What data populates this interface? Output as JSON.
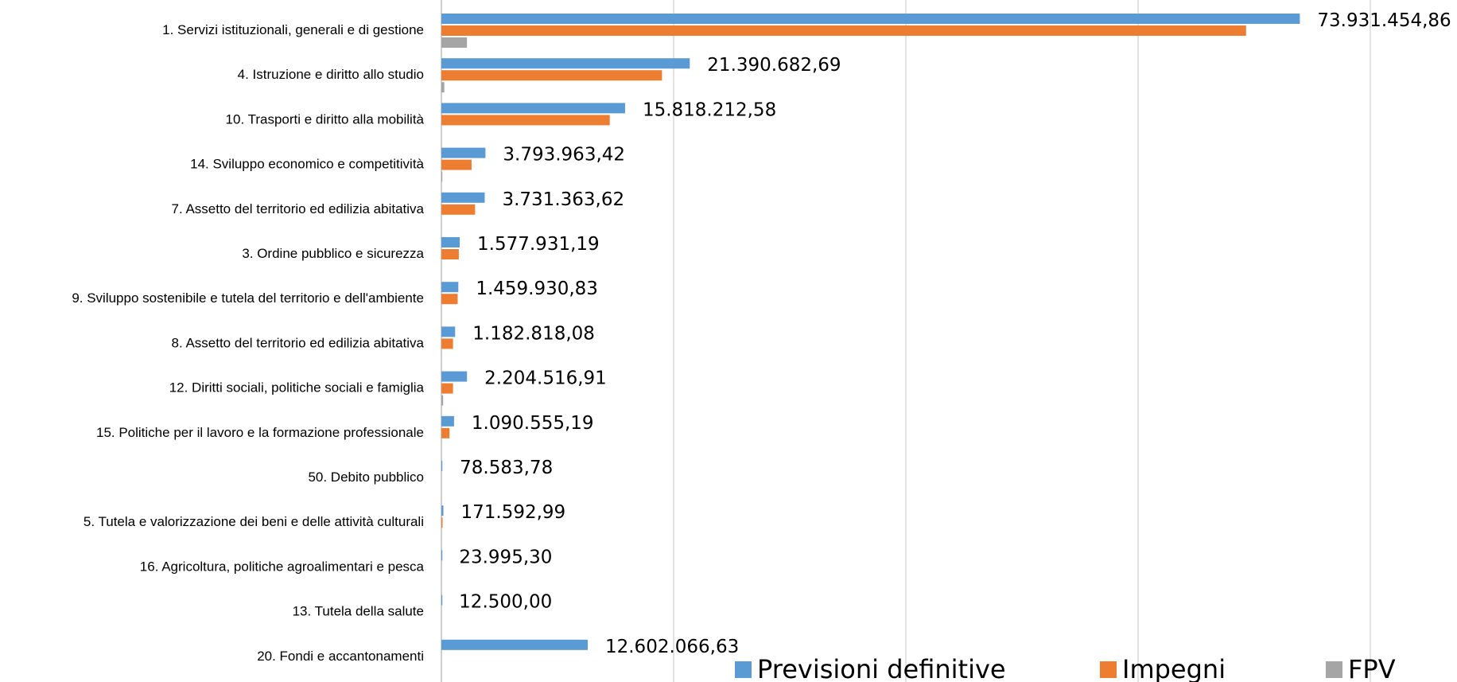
{
  "chart_data": {
    "type": "bar",
    "orientation": "horizontal",
    "categories": [
      "1. Servizi istituzionali, generali e di gestione",
      "4. Istruzione e diritto allo studio",
      "10. Trasporti e diritto alla mobilità",
      "14. Sviluppo economico e competitività",
      "7. Assetto del territorio ed edilizia abitativa",
      "3. Ordine pubblico e sicurezza",
      "9. Sviluppo sostenibile e tutela del territorio e dell'ambiente",
      "8. Assetto del territorio ed edilizia abitativa",
      "12. Diritti sociali, politiche sociali e famiglia",
      "15. Politiche per il lavoro e la formazione professionale",
      "50. Debito pubblico",
      "5. Tutela e valorizzazione dei beni e delle attività culturali",
      "16. Agricoltura, politiche agroalimentari e pesca",
      "13. Tutela della salute",
      "20. Fondi e accantonamenti"
    ],
    "series": [
      {
        "name": "Previsioni definitive",
        "color": "#5b9bd5",
        "values": [
          73931454.86,
          21390682.69,
          15818212.58,
          3793963.42,
          3731363.62,
          1577931.19,
          1459930.83,
          1182818.08,
          2204516.91,
          1090555.19,
          78583.78,
          171592.99,
          23995.3,
          12500.0,
          12602066.63
        ]
      },
      {
        "name": "Impegni",
        "color": "#ed7d31",
        "values": [
          69300000,
          19000000,
          14500000,
          2600000,
          2900000,
          1500000,
          1400000,
          1000000,
          1000000,
          700000,
          0,
          100000,
          0,
          0,
          0
        ]
      },
      {
        "name": "FPV",
        "color": "#a5a5a5",
        "values": [
          2200000,
          250000,
          0,
          50000,
          0,
          0,
          0,
          0,
          150000,
          0,
          0,
          0,
          0,
          0,
          0
        ]
      }
    ],
    "data_labels": [
      "73.931.454,86",
      "21.390.682,69",
      "15.818.212,58",
      "3.793.963,42",
      "3.731.363,62",
      "1.577.931,19",
      "1.459.930,83",
      "1.182.818,08",
      "2.204.516,91",
      "1.090.555,19",
      "78.583,78",
      "171.592,99",
      "23.995,30",
      "12.500,00",
      "12.602.066,63"
    ],
    "xlim": [
      0,
      80000000
    ],
    "grid_step": 20000000,
    "grid": true,
    "legend_position": "bottom-right",
    "title": "",
    "xlabel": "",
    "ylabel": ""
  }
}
